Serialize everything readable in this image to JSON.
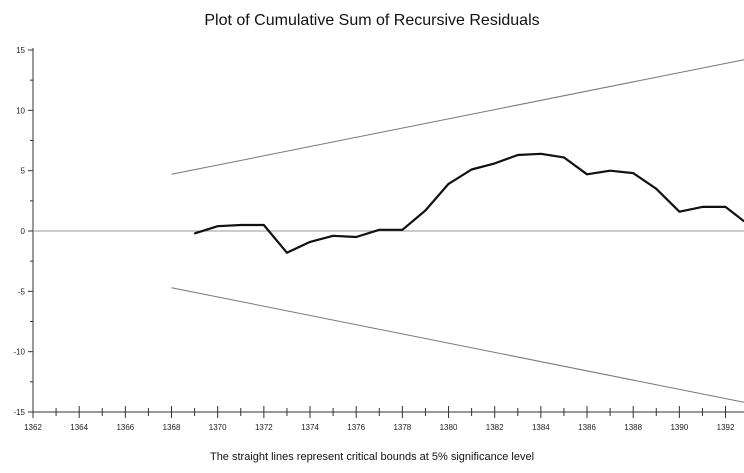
{
  "chart_data": {
    "type": "line",
    "title": "Plot of Cumulative Sum of Recursive Residuals",
    "footnote": "The straight lines represent critical bounds at 5% significance level",
    "xlabel": "",
    "ylabel": "",
    "xlim": [
      1362,
      1392.8
    ],
    "ylim": [
      -15,
      15
    ],
    "x_ticks": [
      1362,
      1364,
      1366,
      1368,
      1370,
      1372,
      1374,
      1376,
      1378,
      1380,
      1382,
      1384,
      1386,
      1388,
      1390,
      1392
    ],
    "y_ticks": [
      15,
      10,
      5,
      0,
      -5,
      -10,
      -15
    ],
    "grid": false,
    "legend": "none",
    "series": [
      {
        "role": "cusum",
        "color": "#111111",
        "x": [
          1369,
          1370,
          1371,
          1372,
          1373,
          1374,
          1375,
          1376,
          1377,
          1378,
          1379,
          1380,
          1381,
          1382,
          1383,
          1384,
          1385,
          1386,
          1387,
          1388,
          1389,
          1390,
          1391,
          1392,
          1392.8
        ],
        "y": [
          -0.2,
          0.4,
          0.5,
          0.5,
          -1.8,
          -0.9,
          -0.4,
          -0.5,
          0.1,
          0.1,
          1.7,
          3.9,
          5.1,
          5.6,
          6.3,
          6.4,
          6.1,
          4.7,
          5.0,
          4.8,
          3.5,
          1.6,
          2.0,
          2.0,
          0.8
        ]
      },
      {
        "role": "upper-bound",
        "color": "#777777",
        "x": [
          1368,
          1392.8
        ],
        "y": [
          4.7,
          14.2
        ]
      },
      {
        "role": "lower-bound",
        "color": "#777777",
        "x": [
          1368,
          1392.8
        ],
        "y": [
          -4.7,
          -14.2
        ]
      }
    ],
    "zero_line": true
  }
}
